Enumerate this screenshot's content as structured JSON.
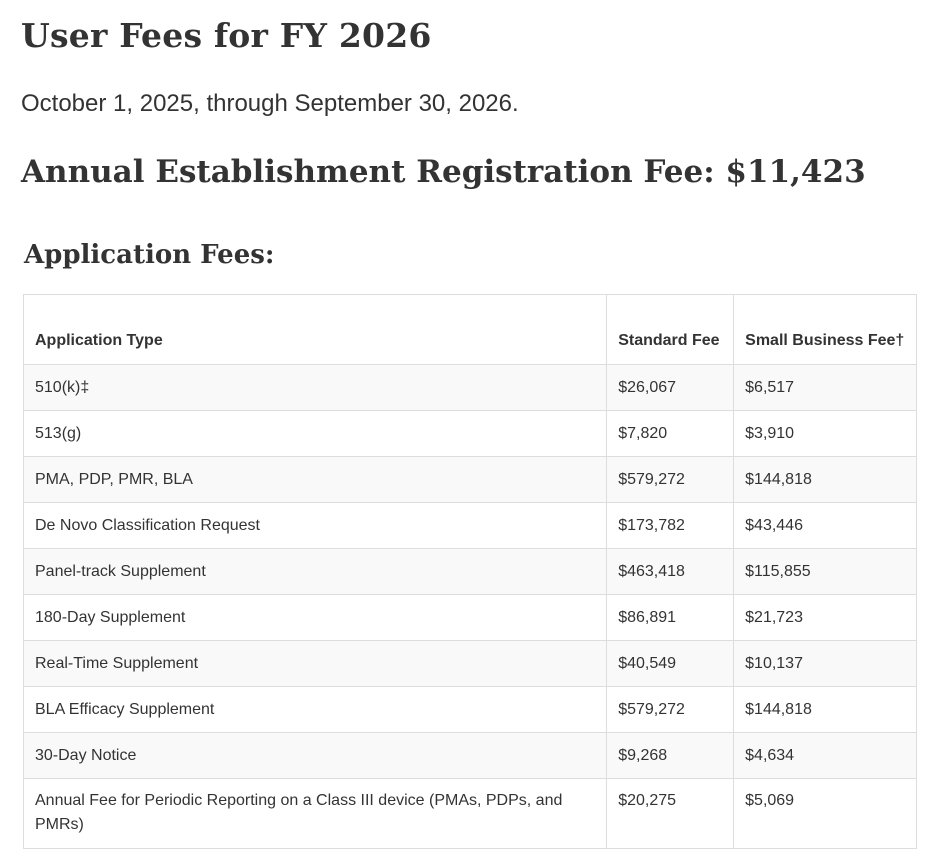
{
  "page": {
    "title": "User Fees for FY 2026",
    "date_range": "October 1, 2025, through September 30, 2026.",
    "registration_fee": "Annual Establishment Registration Fee: $11,423",
    "application_heading": "Application Fees:"
  },
  "table": {
    "headers": {
      "type": "Application Type",
      "standard": "Standard Fee",
      "small_business": "Small Business Fee†"
    },
    "rows": [
      {
        "type": "510(k)‡",
        "standard": "$26,067",
        "small": "$6,517"
      },
      {
        "type": "513(g)",
        "standard": "$7,820",
        "small": "$3,910"
      },
      {
        "type": "PMA, PDP, PMR, BLA",
        "standard": "$579,272",
        "small": "$144,818"
      },
      {
        "type": "De Novo Classification Request",
        "standard": "$173,782",
        "small": "$43,446"
      },
      {
        "type": "Panel-track Supplement",
        "standard": "$463,418",
        "small": "$115,855"
      },
      {
        "type": "180-Day Supplement",
        "standard": "$86,891",
        "small": "$21,723"
      },
      {
        "type": "Real-Time Supplement",
        "standard": "$40,549",
        "small": "$10,137"
      },
      {
        "type": "BLA Efficacy Supplement",
        "standard": "$579,272",
        "small": "$144,818"
      },
      {
        "type": "30-Day Notice",
        "standard": "$9,268",
        "small": "$4,634"
      },
      {
        "type": "Annual Fee for Periodic Reporting on a Class III device (PMAs, PDPs, and PMRs)",
        "standard": "$20,275",
        "small": "$5,069"
      }
    ]
  }
}
